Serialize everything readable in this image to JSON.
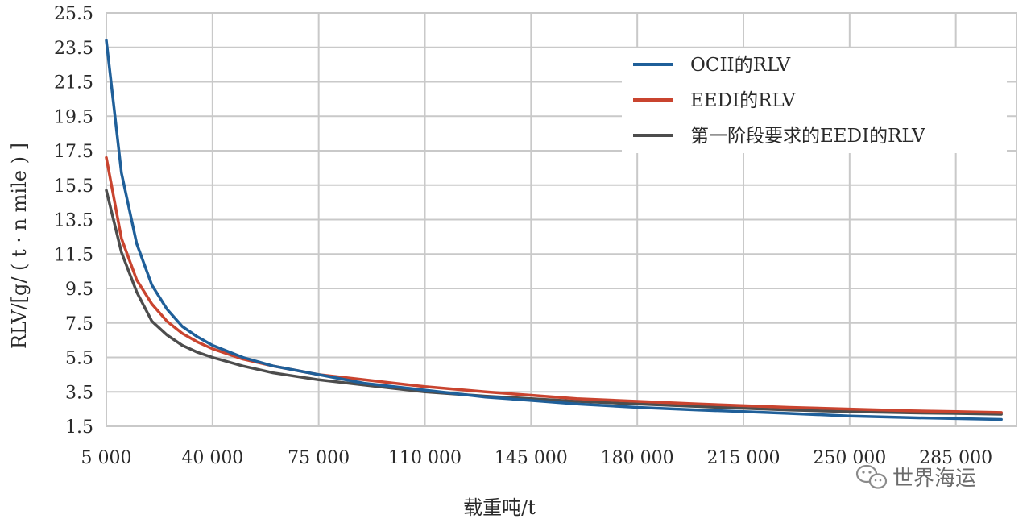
{
  "chart_data": {
    "type": "line",
    "xlabel": "载重吨/t",
    "ylabel": "RLV/[g/ ( t · n mile ) ]",
    "xlim": [
      5000,
      305000
    ],
    "ylim": [
      1.5,
      25.5
    ],
    "x_ticks": [
      5000,
      40000,
      75000,
      110000,
      145000,
      180000,
      215000,
      250000,
      285000
    ],
    "x_tick_labels": [
      "5 000",
      "40 000",
      "75 000",
      "110 000",
      "145 000",
      "180 000",
      "215 000",
      "250 000",
      "285 000"
    ],
    "y_ticks": [
      1.5,
      3.5,
      5.5,
      7.5,
      9.5,
      11.5,
      13.5,
      15.5,
      17.5,
      19.5,
      21.5,
      23.5,
      25.5
    ],
    "y_tick_labels": [
      "1.5",
      "3.5",
      "5.5",
      "7.5",
      "9.5",
      "11.5",
      "13.5",
      "15.5",
      "17.5",
      "19.5",
      "21.5",
      "23.5",
      "25.5"
    ],
    "grid": true,
    "legend_position": "top-right",
    "series": [
      {
        "name": "OCII的RLV",
        "color": "#1f5f99",
        "points": [
          [
            5000,
            23.9
          ],
          [
            10000,
            16.2
          ],
          [
            15000,
            12.1
          ],
          [
            20000,
            9.7
          ],
          [
            25000,
            8.3
          ],
          [
            30000,
            7.3
          ],
          [
            35000,
            6.7
          ],
          [
            40000,
            6.2
          ],
          [
            50000,
            5.5
          ],
          [
            60000,
            5.0
          ],
          [
            75000,
            4.5
          ],
          [
            90000,
            4.0
          ],
          [
            110000,
            3.6
          ],
          [
            130000,
            3.2
          ],
          [
            145000,
            3.0
          ],
          [
            160000,
            2.8
          ],
          [
            180000,
            2.6
          ],
          [
            200000,
            2.45
          ],
          [
            215000,
            2.35
          ],
          [
            230000,
            2.25
          ],
          [
            250000,
            2.1
          ],
          [
            270000,
            2.0
          ],
          [
            285000,
            1.95
          ],
          [
            300000,
            1.9
          ]
        ]
      },
      {
        "name": "EEDI的RLV",
        "color": "#c9442f",
        "points": [
          [
            5000,
            17.1
          ],
          [
            10000,
            12.4
          ],
          [
            15000,
            10.0
          ],
          [
            20000,
            8.6
          ],
          [
            25000,
            7.6
          ],
          [
            30000,
            6.9
          ],
          [
            35000,
            6.4
          ],
          [
            40000,
            6.0
          ],
          [
            50000,
            5.4
          ],
          [
            60000,
            5.0
          ],
          [
            75000,
            4.5
          ],
          [
            90000,
            4.2
          ],
          [
            110000,
            3.8
          ],
          [
            130000,
            3.5
          ],
          [
            145000,
            3.3
          ],
          [
            160000,
            3.1
          ],
          [
            180000,
            2.95
          ],
          [
            200000,
            2.8
          ],
          [
            215000,
            2.7
          ],
          [
            230000,
            2.6
          ],
          [
            250000,
            2.5
          ],
          [
            270000,
            2.4
          ],
          [
            285000,
            2.35
          ],
          [
            300000,
            2.3
          ]
        ]
      },
      {
        "name": "第一阶段要求的EEDI的RLV",
        "color": "#4d4d4d",
        "points": [
          [
            5000,
            15.2
          ],
          [
            10000,
            11.6
          ],
          [
            15000,
            9.3
          ],
          [
            20000,
            7.6
          ],
          [
            25000,
            6.8
          ],
          [
            30000,
            6.2
          ],
          [
            35000,
            5.8
          ],
          [
            40000,
            5.5
          ],
          [
            50000,
            5.0
          ],
          [
            60000,
            4.6
          ],
          [
            75000,
            4.2
          ],
          [
            90000,
            3.9
          ],
          [
            110000,
            3.5
          ],
          [
            130000,
            3.25
          ],
          [
            145000,
            3.1
          ],
          [
            160000,
            2.95
          ],
          [
            180000,
            2.8
          ],
          [
            200000,
            2.65
          ],
          [
            215000,
            2.55
          ],
          [
            230000,
            2.45
          ],
          [
            250000,
            2.35
          ],
          [
            270000,
            2.28
          ],
          [
            285000,
            2.25
          ],
          [
            300000,
            2.2
          ]
        ]
      }
    ]
  },
  "watermark": {
    "icon": "wechat-icon",
    "text": "世界海运"
  }
}
